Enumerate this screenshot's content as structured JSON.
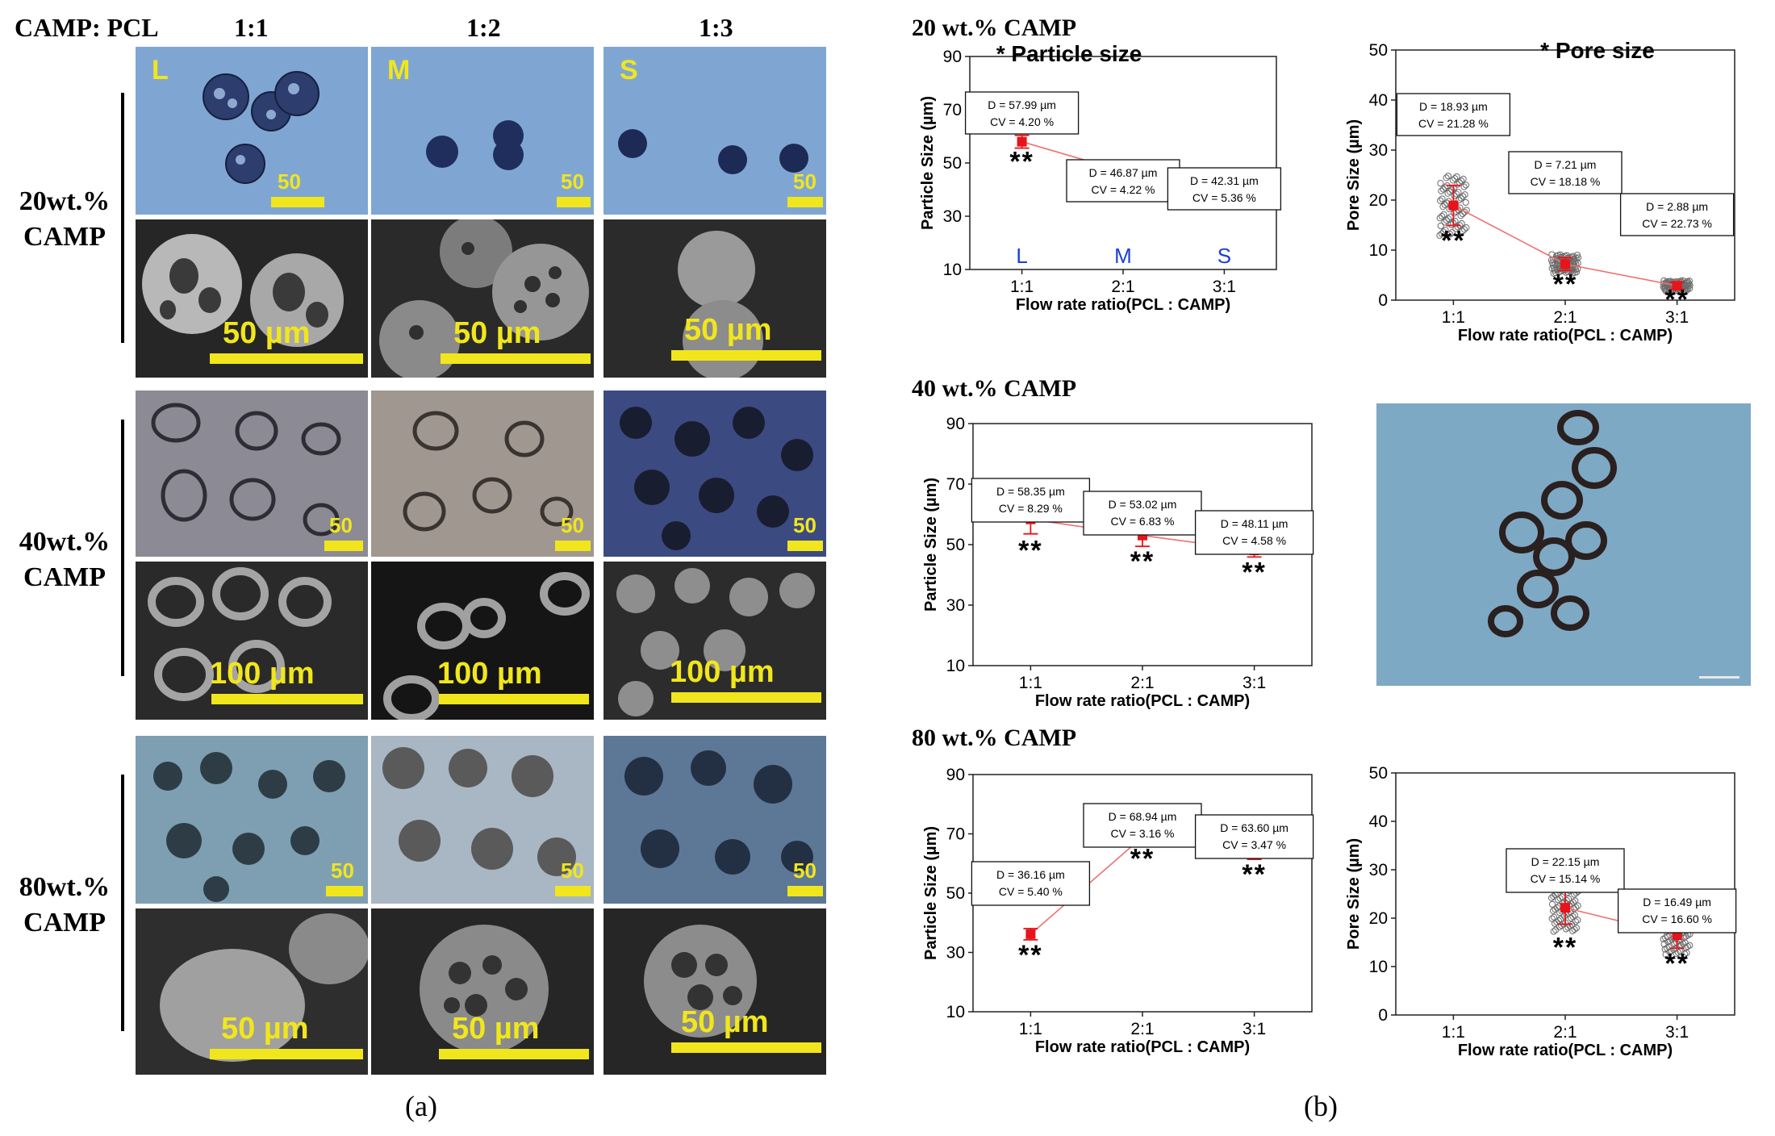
{
  "panel_a": {
    "header": {
      "label": "CAMP: PCL",
      "cols": [
        "1:1",
        "1:2",
        "1:3"
      ]
    },
    "rows": [
      {
        "label_line1": "20wt.%",
        "label_line2": "CAMP",
        "tags": [
          "L",
          "M",
          "S"
        ],
        "optical_scale": "50",
        "sem_scale": "50 µm"
      },
      {
        "label_line1": "40wt.%",
        "label_line2": "CAMP",
        "optical_scale": "50",
        "sem_scale": "100 µm"
      },
      {
        "label_line1": "80wt.%",
        "label_line2": "CAMP",
        "optical_scale": "50",
        "sem_scale": "50 µm"
      }
    ],
    "caption": "(a)"
  },
  "panel_b": {
    "caption": "(b)",
    "sections": [
      "20 wt.% CAMP",
      "40 wt.% CAMP",
      "80 wt.% CAMP"
    ]
  },
  "chart_data": [
    {
      "type": "line",
      "title": "* Particle size",
      "section": "20 wt.% CAMP",
      "xlabel": "Flow rate ratio(PCL : CAMP)",
      "ylabel": "Particle Size (µm)",
      "categories": [
        "1:1",
        "2:1",
        "3:1"
      ],
      "ylim": [
        10,
        90
      ],
      "yticks": [
        10,
        30,
        50,
        70,
        90
      ],
      "values": [
        57.99,
        46.87,
        42.31
      ],
      "errors": [
        2.4,
        2.0,
        2.3
      ],
      "annotations": [
        {
          "line1": "D = 57.99 µm",
          "line2": "CV = 4.20 %"
        },
        {
          "line1": "D = 46.87 µm",
          "line2": "CV = 4.22 %"
        },
        {
          "line1": "D = 42.31 µm",
          "line2": "CV = 5.36 %"
        }
      ],
      "significance": [
        "**",
        "**",
        "**"
      ],
      "point_labels": [
        "L",
        "M",
        "S"
      ]
    },
    {
      "type": "scatter",
      "title": "* Pore size",
      "section": "20 wt.% CAMP",
      "xlabel": "Flow rate ratio(PCL : CAMP)",
      "ylabel": "Pore Size (µm)",
      "categories": [
        "1:1",
        "2:1",
        "3:1"
      ],
      "ylim": [
        0,
        50
      ],
      "yticks": [
        0,
        10,
        20,
        30,
        40,
        50
      ],
      "values": [
        18.93,
        7.21,
        2.88
      ],
      "errors": [
        4.0,
        1.3,
        0.7
      ],
      "annotations": [
        {
          "line1": "D = 18.93 µm",
          "line2": "CV = 21.28 %"
        },
        {
          "line1": "D = 7.21 µm",
          "line2": "CV = 18.18 %"
        },
        {
          "line1": "D = 2.88 µm",
          "line2": "CV = 22.73 %"
        }
      ],
      "significance": [
        "**",
        "**",
        "**"
      ]
    },
    {
      "type": "line",
      "section": "40 wt.% CAMP",
      "xlabel": "Flow rate ratio(PCL : CAMP)",
      "ylabel": "Particle Size (µm)",
      "categories": [
        "1:1",
        "2:1",
        "3:1"
      ],
      "ylim": [
        10,
        90
      ],
      "yticks": [
        10,
        30,
        50,
        70,
        90
      ],
      "values": [
        58.35,
        53.02,
        48.11
      ],
      "errors": [
        4.8,
        3.6,
        2.2
      ],
      "annotations": [
        {
          "line1": "D = 58.35 µm",
          "line2": "CV = 8.29 %"
        },
        {
          "line1": "D = 53.02 µm",
          "line2": "CV = 6.83 %"
        },
        {
          "line1": "D = 48.11 µm",
          "line2": "CV = 4.58 %"
        }
      ],
      "significance": [
        "**",
        "**",
        "**"
      ]
    },
    {
      "type": "line",
      "section": "80 wt.% CAMP",
      "xlabel": "Flow rate ratio(PCL : CAMP)",
      "ylabel": "Particle Size (µm)",
      "categories": [
        "1:1",
        "2:1",
        "3:1"
      ],
      "ylim": [
        10,
        90
      ],
      "yticks": [
        10,
        30,
        50,
        70,
        90
      ],
      "values": [
        36.16,
        68.94,
        63.6
      ],
      "errors": [
        1.9,
        2.2,
        2.2
      ],
      "annotations": [
        {
          "line1": "D = 36.16 µm",
          "line2": "CV = 5.40 %"
        },
        {
          "line1": "D = 68.94 µm",
          "line2": "CV = 3.16 %"
        },
        {
          "line1": "D = 63.60 µm",
          "line2": "CV = 3.47 %"
        }
      ],
      "significance": [
        "**",
        "**",
        "**"
      ]
    },
    {
      "type": "scatter",
      "section": "80 wt.% CAMP",
      "xlabel": "Flow rate ratio(PCL : CAMP)",
      "ylabel": "Pore Size (µm)",
      "categories": [
        "1:1",
        "2:1",
        "3:1"
      ],
      "ylim": [
        0,
        50
      ],
      "yticks": [
        0,
        10,
        20,
        30,
        40,
        50
      ],
      "values": [
        null,
        22.15,
        16.49
      ],
      "errors": [
        null,
        3.4,
        2.7
      ],
      "annotations": [
        null,
        {
          "line1": "D = 22.15 µm",
          "line2": "CV = 15.14 %"
        },
        {
          "line1": "D = 16.49 µm",
          "line2": "CV = 16.60 %"
        }
      ],
      "significance": [
        "",
        "**",
        "**"
      ]
    }
  ],
  "colors": {
    "marker": "#e8141a",
    "trend": "#f07070",
    "scale": "#f1e61c",
    "letters": "#1a3fd6"
  }
}
